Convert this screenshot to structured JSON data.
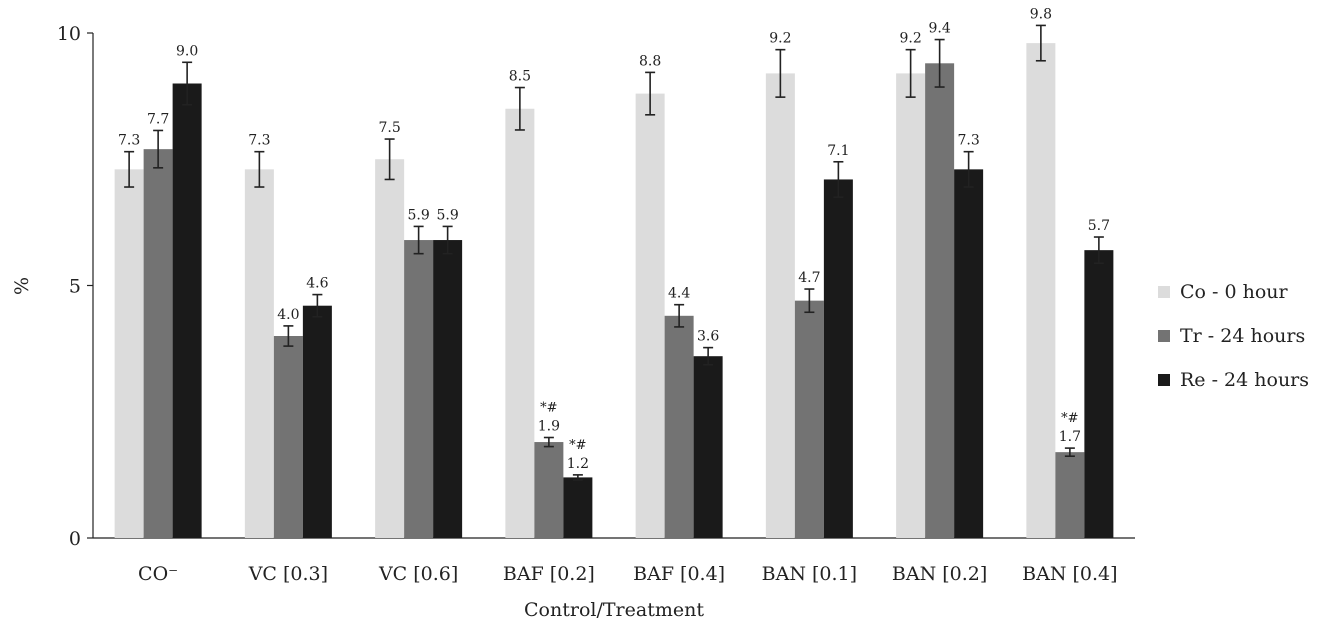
{
  "chart_data": {
    "type": "bar",
    "xlabel": "Control/Treatment",
    "ylabel": "%",
    "ylim": [
      0,
      10
    ],
    "yticks": [
      "0",
      "5",
      "10"
    ],
    "grid": false,
    "legend_position": "right",
    "categories": [
      "CO⁻",
      "VC [0.3]",
      "VC [0.6]",
      "BAF [0.2]",
      "BAF [0.4]",
      "BAN [0.1]",
      "BAN [0.2]",
      "BAN [0.4]"
    ],
    "series": [
      {
        "name": "Co - 0 hour",
        "color": "#dcdcdc",
        "values": [
          7.3,
          7.3,
          7.5,
          8.5,
          8.8,
          9.2,
          9.2,
          9.8
        ],
        "labels": [
          "7.3",
          "7.3",
          "7.5",
          "8.5",
          "8.8",
          "9.2",
          "9.2",
          "9.8"
        ],
        "errors": [
          0.35,
          0.35,
          0.4,
          0.42,
          0.42,
          0.47,
          0.47,
          0.35
        ],
        "annotations": [
          "",
          "",
          "",
          "",
          "",
          "",
          "",
          ""
        ]
      },
      {
        "name": "Tr - 24 hours",
        "color": "#737373",
        "values": [
          7.7,
          4.0,
          5.9,
          1.9,
          4.4,
          4.7,
          9.4,
          1.7
        ],
        "labels": [
          "7.7",
          "4.0",
          "5.9",
          "1.9",
          "4.4",
          "4.7",
          "9.4",
          "1.7"
        ],
        "errors": [
          0.37,
          0.2,
          0.27,
          0.09,
          0.22,
          0.23,
          0.47,
          0.08
        ],
        "annotations": [
          "",
          "",
          "",
          "*#",
          "",
          "",
          "",
          "*#"
        ]
      },
      {
        "name": "Re - 24 hours",
        "color": "#1a1a1a",
        "values": [
          9.0,
          4.6,
          5.9,
          1.2,
          3.6,
          7.1,
          7.3,
          5.7
        ],
        "labels": [
          "9.0",
          "4.6",
          "5.9",
          "1.2",
          "3.6",
          "7.1",
          "7.3",
          "5.7"
        ],
        "errors": [
          0.42,
          0.22,
          0.27,
          0.05,
          0.17,
          0.35,
          0.35,
          0.26
        ],
        "annotations": [
          "",
          "",
          "",
          "*#",
          "",
          "",
          "",
          ""
        ]
      }
    ]
  }
}
